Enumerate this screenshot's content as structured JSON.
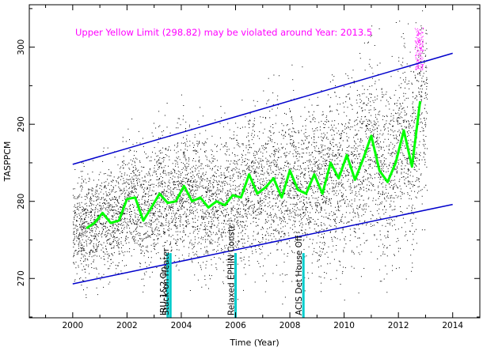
{
  "chart_data": {
    "type": "scatter",
    "title": "",
    "xlabel": "Time (Year)",
    "ylabel": "TASPPCM",
    "xlim": [
      1998.4,
      2015.0
    ],
    "ylim": [
      264.9,
      305.5
    ],
    "x_ticks": [
      2000,
      2002,
      2004,
      2006,
      2008,
      2010,
      2012,
      2014
    ],
    "y_ticks": [
      270,
      280,
      290,
      300
    ],
    "grid": false,
    "annotation": "Upper Yellow  Limit (298.82) may be violated around Year: 2013.5",
    "series": [
      {
        "role": "moving-average",
        "color": "#00ff00",
        "x": [
          2000.5,
          2000.8,
          2001.1,
          2001.4,
          2001.7,
          2002.0,
          2002.3,
          2002.6,
          2002.9,
          2003.2,
          2003.5,
          2003.8,
          2004.1,
          2004.4,
          2004.7,
          2005.0,
          2005.3,
          2005.6,
          2005.9,
          2006.2,
          2006.5,
          2006.8,
          2007.1,
          2007.4,
          2007.7,
          2008.0,
          2008.3,
          2008.6,
          2008.9,
          2009.2,
          2009.5,
          2009.8,
          2010.1,
          2010.4,
          2010.7,
          2011.0,
          2011.3,
          2011.6,
          2011.9,
          2012.2,
          2012.5,
          2012.8
        ],
        "y": [
          276.5,
          277.2,
          278.5,
          277.2,
          277.5,
          280.3,
          280.5,
          277.5,
          279.2,
          281.0,
          279.8,
          280.0,
          282.0,
          280.0,
          280.5,
          279.2,
          280.0,
          279.5,
          280.8,
          280.5,
          283.5,
          281.0,
          281.8,
          283.0,
          280.5,
          284.0,
          281.5,
          281.0,
          283.5,
          281.0,
          285.0,
          283.0,
          286.0,
          282.8,
          285.5,
          288.5,
          284.0,
          282.5,
          285.0,
          289.2,
          284.5,
          293.0
        ]
      },
      {
        "role": "upper-trend",
        "color": "#0000cc",
        "x": [
          2000.0,
          2014.0
        ],
        "y": [
          284.8,
          299.2
        ]
      },
      {
        "role": "lower-trend",
        "color": "#0000cc",
        "x": [
          2000.0,
          2014.0
        ],
        "y": [
          269.3,
          279.6
        ]
      }
    ],
    "scatter": {
      "color": "#000000",
      "x_range": [
        2000.0,
        2013.05
      ],
      "description_only": true
    },
    "violation_points": {
      "color": "#ff00ff",
      "x_range": [
        2012.6,
        2012.9
      ],
      "y_range": [
        297.0,
        302.5
      ]
    },
    "event_markers": [
      {
        "label": "IRU-1&2 On",
        "x": 2003.5,
        "color": "#00cccc"
      },
      {
        "label": "Stuck-on Heater",
        "x": 2003.6,
        "color": "#00cccc"
      },
      {
        "label": "Relaxed EPHIN Constr",
        "x": 2006.0,
        "color": "#00cccc"
      },
      {
        "label": "ACIS Det House Off",
        "x": 2008.5,
        "color": "#00cccc"
      }
    ]
  }
}
